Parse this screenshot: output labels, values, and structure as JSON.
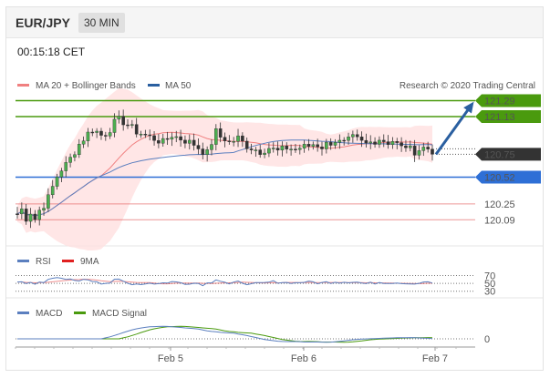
{
  "header": {
    "pair": "EUR/JPY",
    "timeframe": "30 MIN",
    "time": "00:15:18 CET"
  },
  "legend": {
    "ma20": "MA 20 + Bollinger Bands",
    "ma50": "MA 50",
    "copyright": "Research © 2020 Trading Central"
  },
  "colors": {
    "bull": "#4caf50",
    "bear": "#333333",
    "ma20": "#f08080",
    "ma50": "#5b7fbf",
    "resistance": "#4a9a0e",
    "support": "#2e6fd6",
    "support_red": "#e05050",
    "arrow": "#2a5fa0",
    "band": "#ffe0e0"
  },
  "chart_data": [
    {
      "type": "candlestick",
      "legend": [
        "MA 20 + Bollinger Bands",
        "MA 50"
      ],
      "x_ticks": [
        "Feb 5",
        "Feb 6",
        "Feb 7"
      ],
      "current_price": 120.75,
      "levels": [
        {
          "value": 121.29,
          "label": "121.29",
          "role": "resistance",
          "color": "#4a9a0e"
        },
        {
          "value": 121.13,
          "label": "121.13",
          "role": "resistance",
          "color": "#4a9a0e"
        },
        {
          "value": 120.75,
          "label": "120.75",
          "role": "last",
          "color": "#333333"
        },
        {
          "value": 120.52,
          "label": "120.52",
          "role": "pivot",
          "color": "#2e6fd6"
        },
        {
          "value": 120.25,
          "label": "120.25",
          "role": "support",
          "color": "#e05050"
        },
        {
          "value": 120.09,
          "label": "120.09",
          "role": "support",
          "color": "#e05050"
        }
      ],
      "ylim": [
        119.9,
        121.35
      ],
      "trend": [
        0,
        0.05,
        -0.05,
        0.02,
        -0.06,
        0.04,
        0.1,
        0.18,
        0.3,
        0.42,
        0.5,
        0.55,
        0.62,
        0.7,
        0.78,
        0.84,
        0.9,
        0.94,
        0.92,
        0.88,
        0.9,
        0.95,
        1.02,
        1.05,
        1.03,
        1.0,
        0.96,
        0.92,
        0.9,
        0.88,
        0.86,
        0.84,
        0.82,
        0.8,
        0.84,
        0.88,
        0.86,
        0.84,
        0.82,
        0.8,
        0.78,
        0.74,
        0.7,
        0.68,
        0.8,
        0.92,
        0.86,
        0.84,
        0.8,
        0.82,
        0.85,
        0.8,
        0.76,
        0.74,
        0.72,
        0.7,
        0.72,
        0.74,
        0.72,
        0.7,
        0.72,
        0.74,
        0.73,
        0.72,
        0.74,
        0.75,
        0.76,
        0.78,
        0.77,
        0.75,
        0.78,
        0.8,
        0.82,
        0.8,
        0.79,
        0.82,
        0.85,
        0.83,
        0.8,
        0.78,
        0.8,
        0.82,
        0.84,
        0.82,
        0.8,
        0.82,
        0.78,
        0.74,
        0.76,
        0.72,
        0.7,
        0.72,
        0.74,
        0.73,
        0.72
      ],
      "trend_scale": {
        "base": 120.15,
        "range": 0.9
      },
      "forecast": {
        "from": 120.75,
        "to": 121.29
      }
    },
    {
      "type": "line",
      "title": "RSI",
      "legend": [
        "RSI",
        "9MA"
      ],
      "y_ticks": [
        70,
        50,
        30
      ],
      "ylim": [
        20,
        85
      ]
    },
    {
      "type": "line",
      "title": "MACD",
      "legend": [
        "MACD",
        "MACD Signal"
      ],
      "y_ticks": [
        0
      ]
    }
  ]
}
